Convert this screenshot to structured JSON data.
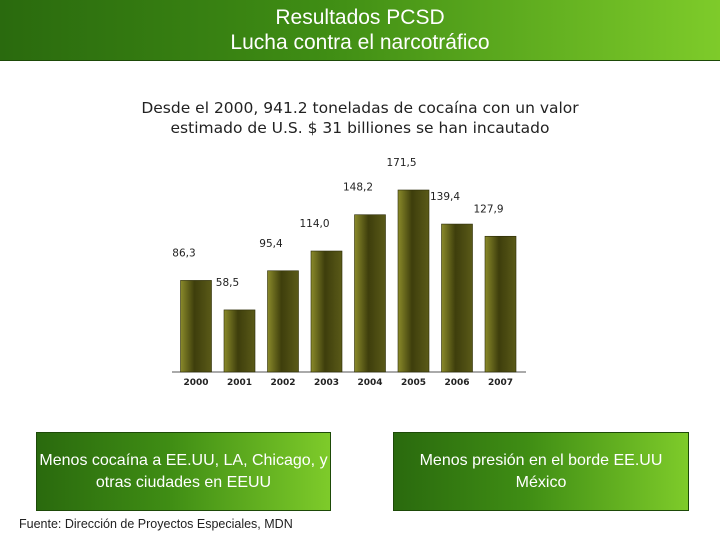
{
  "header": {
    "line1": "Resultados PCSD",
    "line2": "Lucha contra el narcotráfico"
  },
  "subtitle": {
    "line1": "Desde el 2000, 941.2 toneladas de cocaína con un valor",
    "line2": "estimado de U.S. $ 31 billiones se han incautado"
  },
  "chart_data": {
    "type": "bar",
    "categories": [
      "2000",
      "2001",
      "2002",
      "2003",
      "2004",
      "2005",
      "2006",
      "2007"
    ],
    "values": [
      86.3,
      58.5,
      95.4,
      114.0,
      148.2,
      171.5,
      139.4,
      127.9
    ],
    "value_labels": [
      "86,3",
      "58,5",
      "95,4",
      "114,0",
      "148,2",
      "171,5",
      "139,4",
      "127,9"
    ],
    "title": "",
    "xlabel": "",
    "ylabel": "",
    "ylim": [
      0,
      171.5
    ],
    "grid": false,
    "legend": "none",
    "bar_color": "#4a4a12"
  },
  "boxes": {
    "left": "Menos cocaína a EE.UU, LA, Chicago, y otras ciudades en EEUU",
    "right": "Menos presión en el borde EE.UU México"
  },
  "source": "Fuente: Dirección de Proyectos Especiales, MDN",
  "colors": {
    "header_dark": "#2a6a0e",
    "header_light": "#7ecb2a"
  }
}
